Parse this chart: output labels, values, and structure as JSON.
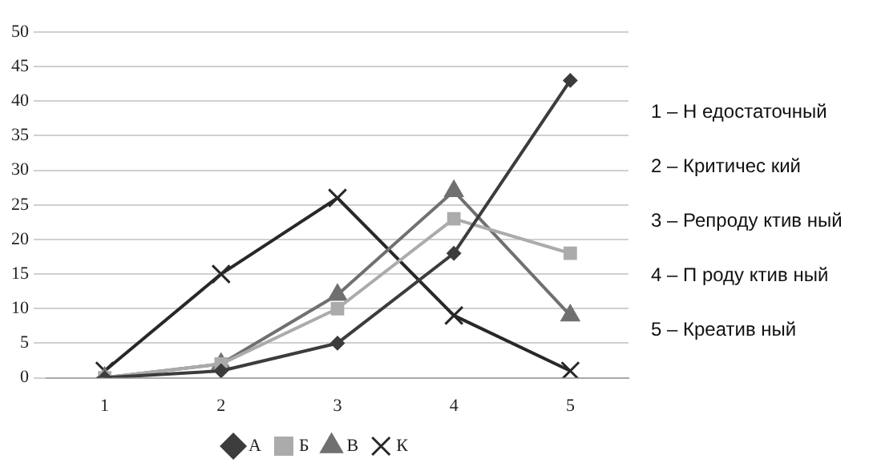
{
  "chart_data": {
    "type": "line",
    "categories": [
      "1",
      "2",
      "3",
      "4",
      "5"
    ],
    "series": [
      {
        "name": "А",
        "color": "#3c3c3c",
        "marker": "diamond",
        "values": [
          0,
          1,
          5,
          18,
          43
        ]
      },
      {
        "name": "Б",
        "color": "#ababab",
        "marker": "square",
        "values": [
          0,
          2,
          10,
          23,
          18
        ]
      },
      {
        "name": "В",
        "color": "#707070",
        "marker": "triangle",
        "values": [
          0,
          2,
          12,
          27,
          9
        ]
      },
      {
        "name": "К",
        "color": "#282828",
        "marker": "cross",
        "values": [
          1,
          15,
          26,
          9,
          1
        ]
      }
    ],
    "ylim": [
      0,
      50
    ],
    "yticks": [
      0,
      5,
      10,
      15,
      20,
      25,
      30,
      35,
      40,
      45,
      50
    ],
    "grid": "y",
    "legend": "bottom",
    "annotations": [
      "1 – Н едостаточный",
      "2 – Критичес кий",
      "3 – Репроду ктив ный",
      "4 – П роду ктив ный",
      "5 – Креатив ный"
    ]
  }
}
